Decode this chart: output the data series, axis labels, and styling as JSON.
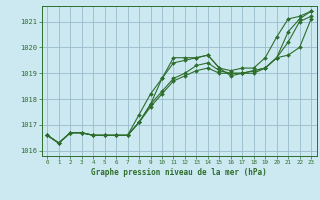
{
  "title": "Graphe pression niveau de la mer (hPa)",
  "bg_color": "#cce8f0",
  "grid_color": "#99bbcc",
  "line_color": "#2d6e2d",
  "text_color": "#2d6e2d",
  "xlim": [
    -0.5,
    23.5
  ],
  "ylim": [
    1015.8,
    1021.6
  ],
  "yticks": [
    1016,
    1017,
    1018,
    1019,
    1020,
    1021
  ],
  "xticks": [
    0,
    1,
    2,
    3,
    4,
    5,
    6,
    7,
    8,
    9,
    10,
    11,
    12,
    13,
    14,
    15,
    16,
    17,
    18,
    19,
    20,
    21,
    22,
    23
  ],
  "series": [
    [
      1016.6,
      1016.3,
      1016.7,
      1016.7,
      1016.6,
      1016.6,
      1016.6,
      1016.6,
      1017.1,
      1017.8,
      1018.8,
      1019.6,
      1019.6,
      1019.6,
      1019.7,
      1019.2,
      1019.1,
      1019.2,
      1019.2,
      1019.6,
      1020.4,
      1021.1,
      1021.2,
      1021.4
    ],
    [
      1016.6,
      1016.3,
      1016.7,
      1016.7,
      1016.6,
      1016.6,
      1016.6,
      1016.6,
      1017.1,
      1017.8,
      1018.3,
      1018.8,
      1019.0,
      1019.3,
      1019.4,
      1019.1,
      1019.0,
      1019.0,
      1019.0,
      1019.2,
      1019.6,
      1020.2,
      1021.0,
      1021.2
    ],
    [
      1016.6,
      1016.3,
      1016.7,
      1016.7,
      1016.6,
      1016.6,
      1016.6,
      1016.6,
      1017.1,
      1017.7,
      1018.2,
      1018.7,
      1018.9,
      1019.1,
      1019.2,
      1019.0,
      1019.0,
      1019.0,
      1019.1,
      1019.2,
      1019.6,
      1019.7,
      1020.0,
      1021.1
    ],
    [
      1016.6,
      1016.3,
      1016.7,
      1016.7,
      1016.6,
      1016.6,
      1016.6,
      1016.6,
      1017.4,
      1018.2,
      1018.8,
      1019.4,
      1019.5,
      1019.6,
      1019.7,
      1019.2,
      1018.9,
      1019.0,
      1019.1,
      1019.2,
      1019.6,
      1020.6,
      1021.1,
      1021.4
    ]
  ],
  "figsize": [
    3.2,
    2.0
  ],
  "dpi": 100
}
